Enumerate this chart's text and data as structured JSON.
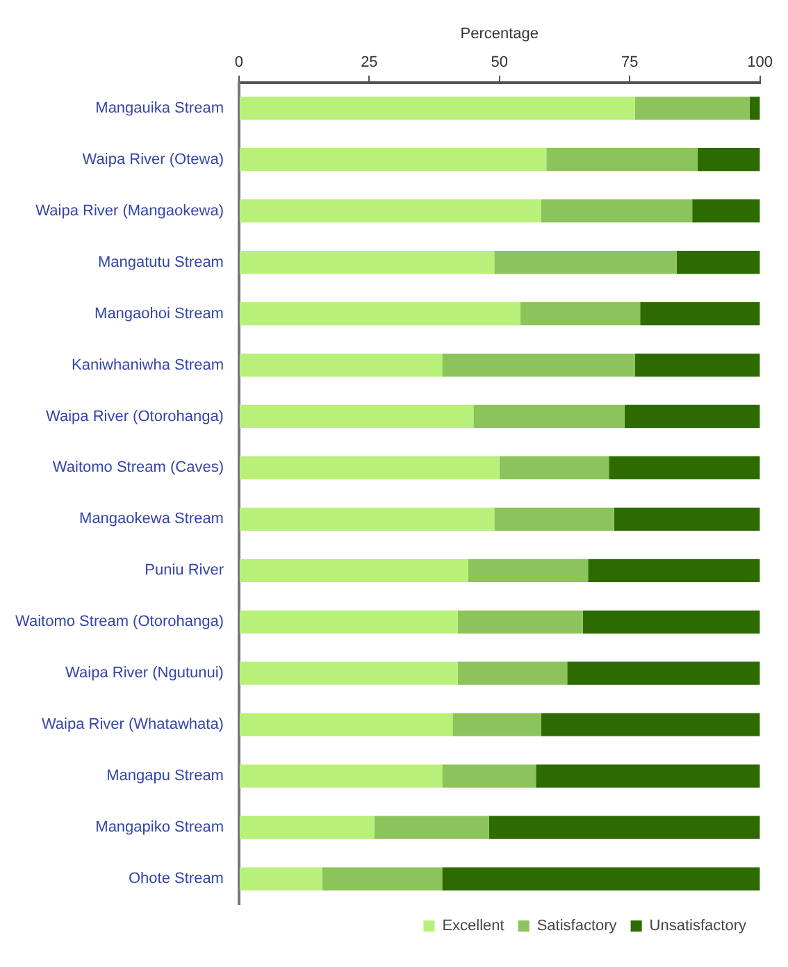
{
  "chart_data": {
    "type": "bar",
    "orientation": "horizontal",
    "stacked": true,
    "xlabel": "Percentage",
    "categories": [
      "Mangauika Stream",
      "Waipa River (Otewa)",
      "Waipa River (Mangaokewa)",
      "Mangatutu Stream",
      "Mangaohoi Stream",
      "Kaniwhaniwha Stream",
      "Waipa River (Otorohanga)",
      "Waitomo Stream (Caves)",
      "Mangaokewa Stream",
      "Puniu River",
      "Waitomo Stream (Otorohanga)",
      "Waipa River (Ngutunui)",
      "Waipa River (Whatawhata)",
      "Mangapu Stream",
      "Mangapiko Stream",
      "Ohote Stream"
    ],
    "series": [
      {
        "name": "Excellent",
        "color": "#b8f07a",
        "values": [
          76,
          59,
          58,
          49,
          54,
          39,
          45,
          50,
          49,
          44,
          42,
          42,
          41,
          39,
          26,
          16
        ]
      },
      {
        "name": "Satisfactory",
        "color": "#8cc35a",
        "values": [
          22,
          29,
          29,
          35,
          23,
          37,
          29,
          21,
          23,
          23,
          24,
          21,
          17,
          18,
          22,
          23
        ]
      },
      {
        "name": "Unsatisfactory",
        "color": "#2d6a00",
        "values": [
          2,
          12,
          13,
          16,
          23,
          24,
          26,
          29,
          28,
          33,
          34,
          37,
          42,
          43,
          52,
          61
        ]
      }
    ],
    "xlim": [
      0,
      100
    ],
    "xticks": [
      0,
      25,
      50,
      75,
      100
    ],
    "grid": false,
    "legend": "bottom"
  }
}
